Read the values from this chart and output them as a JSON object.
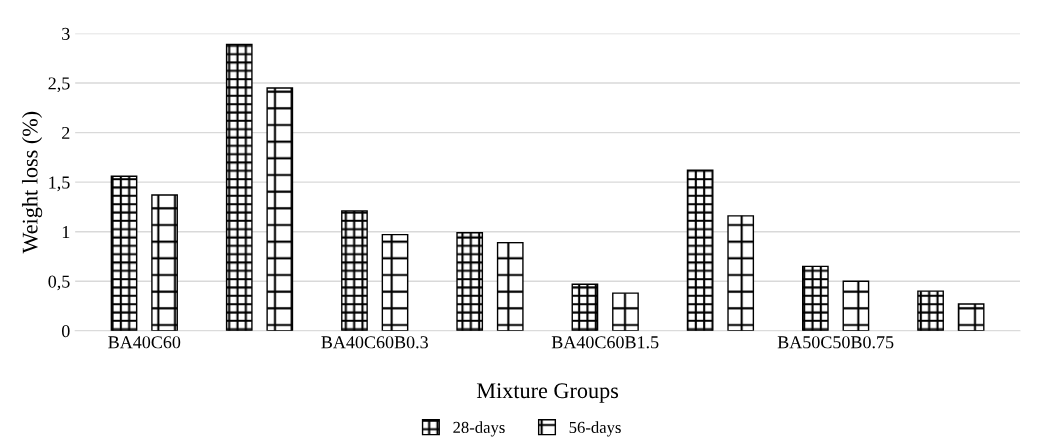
{
  "chart_data": {
    "type": "bar",
    "xlabel": "Mixture Groups",
    "ylabel": "Weight loss (%)",
    "categories": [
      "BA40C60",
      null,
      "BA40C60B0.3",
      null,
      "BA40C60B1.5",
      null,
      "BA50C50B0.75",
      null
    ],
    "series": [
      {
        "name": "28-days",
        "color": "#000000",
        "values": [
          1.56,
          2.89,
          1.21,
          0.99,
          0.47,
          1.62,
          0.65,
          0.4
        ]
      },
      {
        "name": "56-days",
        "color": "#000000",
        "values": [
          1.37,
          2.45,
          0.97,
          0.89,
          0.38,
          1.16,
          0.5,
          0.27
        ]
      }
    ],
    "ylim": [
      0,
      3
    ],
    "yticks": [
      0,
      {
        "value": 0.5,
        "label": "0,5"
      },
      1,
      {
        "value": 1.5,
        "label": "1,5"
      },
      2,
      {
        "value": 2.5,
        "label": "2,5"
      },
      3
    ],
    "grid": "y",
    "legend": "bottom"
  }
}
